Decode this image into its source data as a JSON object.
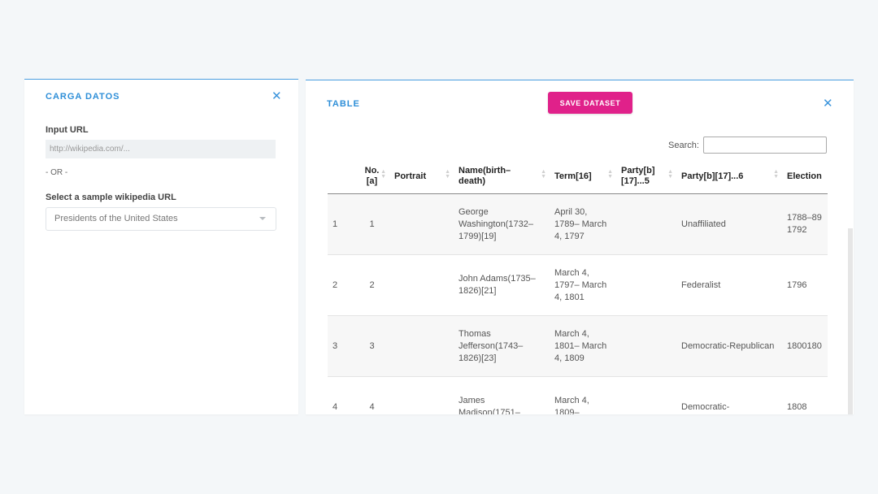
{
  "left_panel": {
    "title": "CARGA DATOS",
    "close_icon": "close-icon",
    "input_url_label": "Input URL",
    "input_url_placeholder": "http://wikipedia.com/...",
    "or_text": "- OR -",
    "sample_label": "Select a sample wikipedia URL",
    "sample_selected": "Presidents of the United States"
  },
  "right_panel": {
    "title": "TABLE",
    "save_label": "SAVE DATASET",
    "close_icon": "close-icon",
    "search_label": "Search:",
    "search_value": "",
    "columns": [
      "",
      "No.\n[a]",
      "Portrait",
      "Name(birth–\ndeath)",
      "Term[16]",
      "Party[b]\n[17]...5",
      "Party[b][17]...6",
      "Election"
    ],
    "rows": [
      {
        "idx": "1",
        "no": "1",
        "portrait": "",
        "name": "George Washington(1732–1799)[19]",
        "term": "April 30, 1789– March 4, 1797",
        "party5": "",
        "party6": "Unaffiliated",
        "election": "1788–89 1792"
      },
      {
        "idx": "2",
        "no": "2",
        "portrait": "",
        "name": "John Adams(1735–1826)[21]",
        "term": "March 4, 1797– March 4, 1801",
        "party5": "",
        "party6": "Federalist",
        "election": "1796"
      },
      {
        "idx": "3",
        "no": "3",
        "portrait": "",
        "name": "Thomas Jefferson(1743–1826)[23]",
        "term": "March 4, 1801– March 4, 1809",
        "party5": "",
        "party6": "Democratic-Republican",
        "election": "1800180"
      },
      {
        "idx": "4",
        "no": "4",
        "portrait": "",
        "name": "James Madison(1751–",
        "term": "March 4, 1809–",
        "party5": "",
        "party6": "Democratic-",
        "election": "1808"
      }
    ]
  },
  "colors": {
    "accent": "#2f8fd8",
    "save_button": "#e0218a",
    "background": "#f4f7f9"
  }
}
